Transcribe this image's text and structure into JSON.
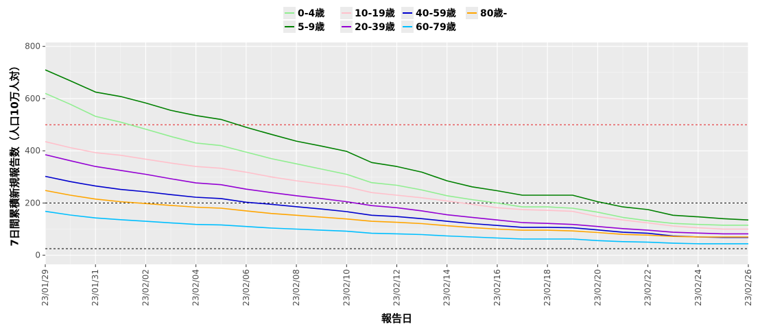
{
  "chart_data": {
    "type": "line",
    "xlabel": "報告日",
    "ylabel": "7日間累積新規報告数（人口10万人対）",
    "x": [
      "23/01/29",
      "23/01/30",
      "23/01/31",
      "23/02/01",
      "23/02/02",
      "23/02/03",
      "23/02/04",
      "23/02/05",
      "23/02/06",
      "23/02/07",
      "23/02/08",
      "23/02/09",
      "23/02/10",
      "23/02/11",
      "23/02/12",
      "23/02/13",
      "23/02/14",
      "23/02/15",
      "23/02/16",
      "23/02/17",
      "23/02/18",
      "23/02/19",
      "23/02/20",
      "23/02/21",
      "23/02/22",
      "23/02/23",
      "23/02/24",
      "23/02/25",
      "23/02/26"
    ],
    "x_tick_labels": [
      "23/01/29",
      "23/01/31",
      "23/02/02",
      "23/02/04",
      "23/02/06",
      "23/02/08",
      "23/02/10",
      "23/02/12",
      "23/02/14",
      "23/02/16",
      "23/02/18",
      "23/02/20",
      "23/02/22",
      "23/02/24",
      "23/02/26"
    ],
    "y_tick_labels": [
      "0",
      "200",
      "400",
      "600",
      "800"
    ],
    "ylim": [
      -35,
      815
    ],
    "grid": true,
    "legend_position": "top",
    "reference_lines": [
      {
        "y": 500,
        "color": "#e41a1c"
      },
      {
        "y": 200,
        "color": "#000000"
      },
      {
        "y": 25,
        "color": "#000000"
      }
    ],
    "series": [
      {
        "name": "0-4歳",
        "color": "#90ee90",
        "values": [
          620,
          578,
          532,
          510,
          483,
          455,
          430,
          420,
          395,
          370,
          350,
          330,
          310,
          278,
          268,
          250,
          228,
          213,
          200,
          185,
          185,
          180,
          165,
          145,
          132,
          122,
          118,
          115,
          115
        ]
      },
      {
        "name": "5-9歳",
        "color": "#008000",
        "values": [
          710,
          668,
          625,
          608,
          583,
          555,
          535,
          520,
          490,
          463,
          437,
          418,
          398,
          355,
          340,
          318,
          285,
          262,
          247,
          230,
          230,
          230,
          205,
          185,
          175,
          153,
          147,
          140,
          135
        ]
      },
      {
        "name": "10-19歳",
        "color": "#ffc0cb",
        "values": [
          435,
          412,
          393,
          383,
          368,
          353,
          340,
          333,
          318,
          300,
          285,
          273,
          262,
          240,
          230,
          220,
          208,
          195,
          182,
          175,
          172,
          168,
          148,
          135,
          124,
          112,
          105,
          100,
          100
        ]
      },
      {
        "name": "20-39歳",
        "color": "#9400d3",
        "values": [
          385,
          362,
          340,
          325,
          310,
          293,
          277,
          270,
          253,
          240,
          228,
          217,
          205,
          190,
          182,
          170,
          155,
          145,
          135,
          125,
          122,
          118,
          110,
          102,
          96,
          88,
          85,
          82,
          82
        ]
      },
      {
        "name": "40-59歳",
        "color": "#0000cd",
        "values": [
          302,
          282,
          265,
          252,
          243,
          232,
          222,
          217,
          203,
          195,
          186,
          177,
          167,
          153,
          148,
          140,
          130,
          121,
          114,
          107,
          107,
          105,
          97,
          88,
          84,
          74,
          70,
          68,
          68
        ]
      },
      {
        "name": "60-79歳",
        "color": "#00bfff",
        "values": [
          168,
          154,
          143,
          136,
          130,
          124,
          118,
          116,
          110,
          104,
          100,
          96,
          92,
          84,
          82,
          79,
          74,
          70,
          66,
          62,
          62,
          62,
          56,
          52,
          50,
          46,
          44,
          44,
          44
        ]
      },
      {
        "name": "80歳-",
        "color": "#ffa500",
        "values": [
          248,
          230,
          215,
          205,
          198,
          191,
          184,
          180,
          170,
          160,
          153,
          146,
          139,
          130,
          126,
          121,
          113,
          106,
          100,
          96,
          96,
          93,
          87,
          80,
          77,
          72,
          70,
          70,
          70
        ]
      }
    ]
  }
}
